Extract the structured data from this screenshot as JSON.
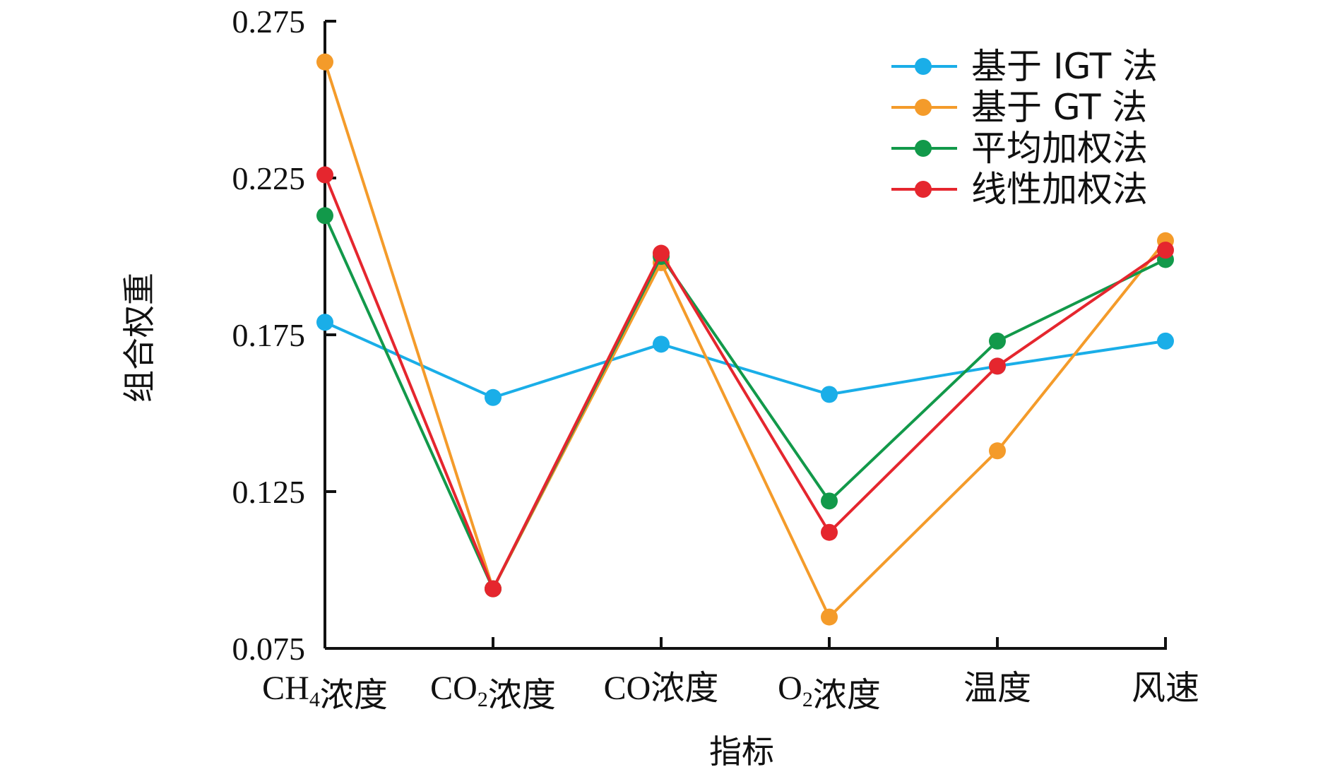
{
  "chart_data": {
    "type": "line",
    "categories": [
      {
        "label": "CH₄浓度",
        "parts": [
          {
            "t": "CH"
          },
          {
            "t": "4",
            "sub": true
          },
          {
            "t": "浓度"
          }
        ]
      },
      {
        "label": "CO₂浓度",
        "parts": [
          {
            "t": "CO"
          },
          {
            "t": "2",
            "sub": true
          },
          {
            "t": "浓度"
          }
        ]
      },
      {
        "label": "CO浓度",
        "parts": [
          {
            "t": "CO浓度"
          }
        ]
      },
      {
        "label": "O₂浓度",
        "parts": [
          {
            "t": "O"
          },
          {
            "t": "2",
            "sub": true
          },
          {
            "t": "浓度"
          }
        ]
      },
      {
        "label": "温度",
        "parts": [
          {
            "t": "温度"
          }
        ]
      },
      {
        "label": "风速",
        "parts": [
          {
            "t": "风速"
          }
        ]
      }
    ],
    "series": [
      {
        "name": "基于 IGT 法",
        "color": "#1aaee8",
        "values": [
          0.179,
          0.155,
          0.172,
          0.156,
          0.165,
          0.173
        ]
      },
      {
        "name": "基于 GT 法",
        "color": "#f49b2a",
        "values": [
          0.262,
          0.094,
          0.198,
          0.085,
          0.138,
          0.205
        ]
      },
      {
        "name": "平均加权法",
        "color": "#12994a",
        "values": [
          0.213,
          0.094,
          0.2,
          0.122,
          0.173,
          0.199
        ]
      },
      {
        "name": "线性加权法",
        "color": "#e5262e",
        "values": [
          0.226,
          0.094,
          0.201,
          0.112,
          0.165,
          0.202
        ]
      }
    ],
    "xlabel": "指标",
    "ylabel": "组合权重",
    "ylim": [
      0.075,
      0.275
    ],
    "yticks": [
      "0.075",
      "0.125",
      "0.175",
      "0.225",
      "0.275"
    ],
    "grid": false,
    "legend_position": "top-right"
  }
}
